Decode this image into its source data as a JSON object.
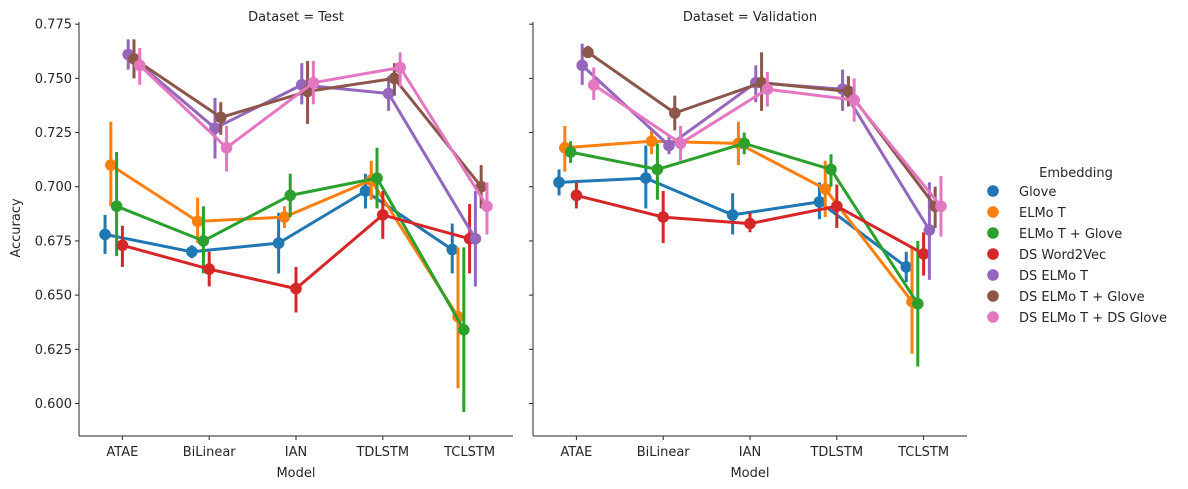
{
  "chart_data": {
    "type": "line",
    "subtype": "point-plot-with-error-bars",
    "ylabel": "Accuracy",
    "xlabel": "Model",
    "ylim": [
      0.585,
      0.776
    ],
    "yticks": [
      "0.600",
      "0.625",
      "0.650",
      "0.675",
      "0.700",
      "0.725",
      "0.750",
      "0.775"
    ],
    "categories": [
      "ATAE",
      "BiLinear",
      "IAN",
      "TDLSTM",
      "TCLSTM"
    ],
    "grid": false,
    "legend": {
      "title": "Embedding",
      "placement": "right",
      "entries": [
        {
          "name": "Glove",
          "color": "#1f77b4"
        },
        {
          "name": "ELMo T",
          "color": "#ff7f0e"
        },
        {
          "name": "ELMo T + Glove",
          "color": "#2ca02c"
        },
        {
          "name": "DS Word2Vec",
          "color": "#d62728"
        },
        {
          "name": "DS ELMo T",
          "color": "#9467bd"
        },
        {
          "name": "DS ELMo T + Glove",
          "color": "#8c564b"
        },
        {
          "name": "DS ELMo T + DS Glove",
          "color": "#e377c2"
        }
      ]
    },
    "panels": [
      {
        "title": "Dataset = Test",
        "series": [
          {
            "name": "Glove",
            "values": [
              0.678,
              0.67,
              0.674,
              0.698,
              0.671
            ],
            "err_low": [
              0.669,
              0.667,
              0.66,
              0.69,
              0.66
            ],
            "err_high": [
              0.687,
              0.673,
              0.688,
              0.706,
              0.683
            ]
          },
          {
            "name": "ELMo T",
            "values": [
              0.71,
              0.684,
              0.686,
              0.703,
              0.64
            ],
            "err_low": [
              0.691,
              0.674,
              0.681,
              0.694,
              0.607
            ],
            "err_high": [
              0.73,
              0.695,
              0.691,
              0.712,
              0.672
            ]
          },
          {
            "name": "ELMo T + Glove",
            "values": [
              0.691,
              0.675,
              0.696,
              0.704,
              0.634
            ],
            "err_low": [
              0.668,
              0.66,
              0.686,
              0.69,
              0.596
            ],
            "err_high": [
              0.716,
              0.691,
              0.706,
              0.718,
              0.672
            ]
          },
          {
            "name": "DS Word2Vec",
            "values": [
              0.673,
              0.662,
              0.653,
              0.687,
              0.676
            ],
            "err_low": [
              0.663,
              0.654,
              0.642,
              0.676,
              0.66
            ],
            "err_high": [
              0.682,
              0.67,
              0.663,
              0.698,
              0.692
            ]
          },
          {
            "name": "DS ELMo T",
            "values": [
              0.761,
              0.727,
              0.747,
              0.743,
              0.676
            ],
            "err_low": [
              0.754,
              0.713,
              0.738,
              0.735,
              0.654
            ],
            "err_high": [
              0.768,
              0.741,
              0.757,
              0.751,
              0.698
            ]
          },
          {
            "name": "DS ELMo T + Glove",
            "values": [
              0.759,
              0.732,
              0.744,
              0.75,
              0.7
            ],
            "err_low": [
              0.75,
              0.724,
              0.729,
              0.742,
              0.69
            ],
            "err_high": [
              0.768,
              0.739,
              0.758,
              0.757,
              0.71
            ]
          },
          {
            "name": "DS ELMo T + DS Glove",
            "values": [
              0.756,
              0.718,
              0.748,
              0.755,
              0.691
            ],
            "err_low": [
              0.747,
              0.707,
              0.738,
              0.746,
              0.678
            ],
            "err_high": [
              0.764,
              0.728,
              0.758,
              0.762,
              0.702
            ]
          }
        ]
      },
      {
        "title": "Dataset = Validation",
        "series": [
          {
            "name": "Glove",
            "values": [
              0.702,
              0.704,
              0.687,
              0.693,
              0.663
            ],
            "err_low": [
              0.696,
              0.69,
              0.678,
              0.685,
              0.656
            ],
            "err_high": [
              0.708,
              0.719,
              0.697,
              0.702,
              0.67
            ]
          },
          {
            "name": "ELMo T",
            "values": [
              0.718,
              0.721,
              0.72,
              0.699,
              0.647
            ],
            "err_low": [
              0.707,
              0.715,
              0.71,
              0.686,
              0.623
            ],
            "err_high": [
              0.728,
              0.726,
              0.73,
              0.712,
              0.672
            ]
          },
          {
            "name": "ELMo T + Glove",
            "values": [
              0.716,
              0.708,
              0.72,
              0.708,
              0.646
            ],
            "err_low": [
              0.711,
              0.694,
              0.715,
              0.7,
              0.617
            ],
            "err_high": [
              0.721,
              0.72,
              0.725,
              0.715,
              0.675
            ]
          },
          {
            "name": "DS Word2Vec",
            "values": [
              0.696,
              0.686,
              0.683,
              0.691,
              0.669
            ],
            "err_low": [
              0.69,
              0.674,
              0.679,
              0.681,
              0.659
            ],
            "err_high": [
              0.702,
              0.698,
              0.688,
              0.701,
              0.679
            ]
          },
          {
            "name": "DS ELMo T",
            "values": [
              0.756,
              0.719,
              0.748,
              0.745,
              0.68
            ],
            "err_low": [
              0.747,
              0.715,
              0.739,
              0.735,
              0.657
            ],
            "err_high": [
              0.766,
              0.723,
              0.756,
              0.754,
              0.702
            ]
          },
          {
            "name": "DS ELMo T + Glove",
            "values": [
              0.762,
              0.734,
              0.748,
              0.744,
              0.691
            ],
            "err_low": [
              0.76,
              0.726,
              0.735,
              0.737,
              0.681
            ],
            "err_high": [
              0.765,
              0.742,
              0.762,
              0.751,
              0.7
            ]
          },
          {
            "name": "DS ELMo T + DS Glove",
            "values": [
              0.747,
              0.72,
              0.745,
              0.74,
              0.691
            ],
            "err_low": [
              0.74,
              0.712,
              0.737,
              0.73,
              0.677
            ],
            "err_high": [
              0.755,
              0.728,
              0.753,
              0.75,
              0.705
            ]
          }
        ]
      }
    ]
  }
}
